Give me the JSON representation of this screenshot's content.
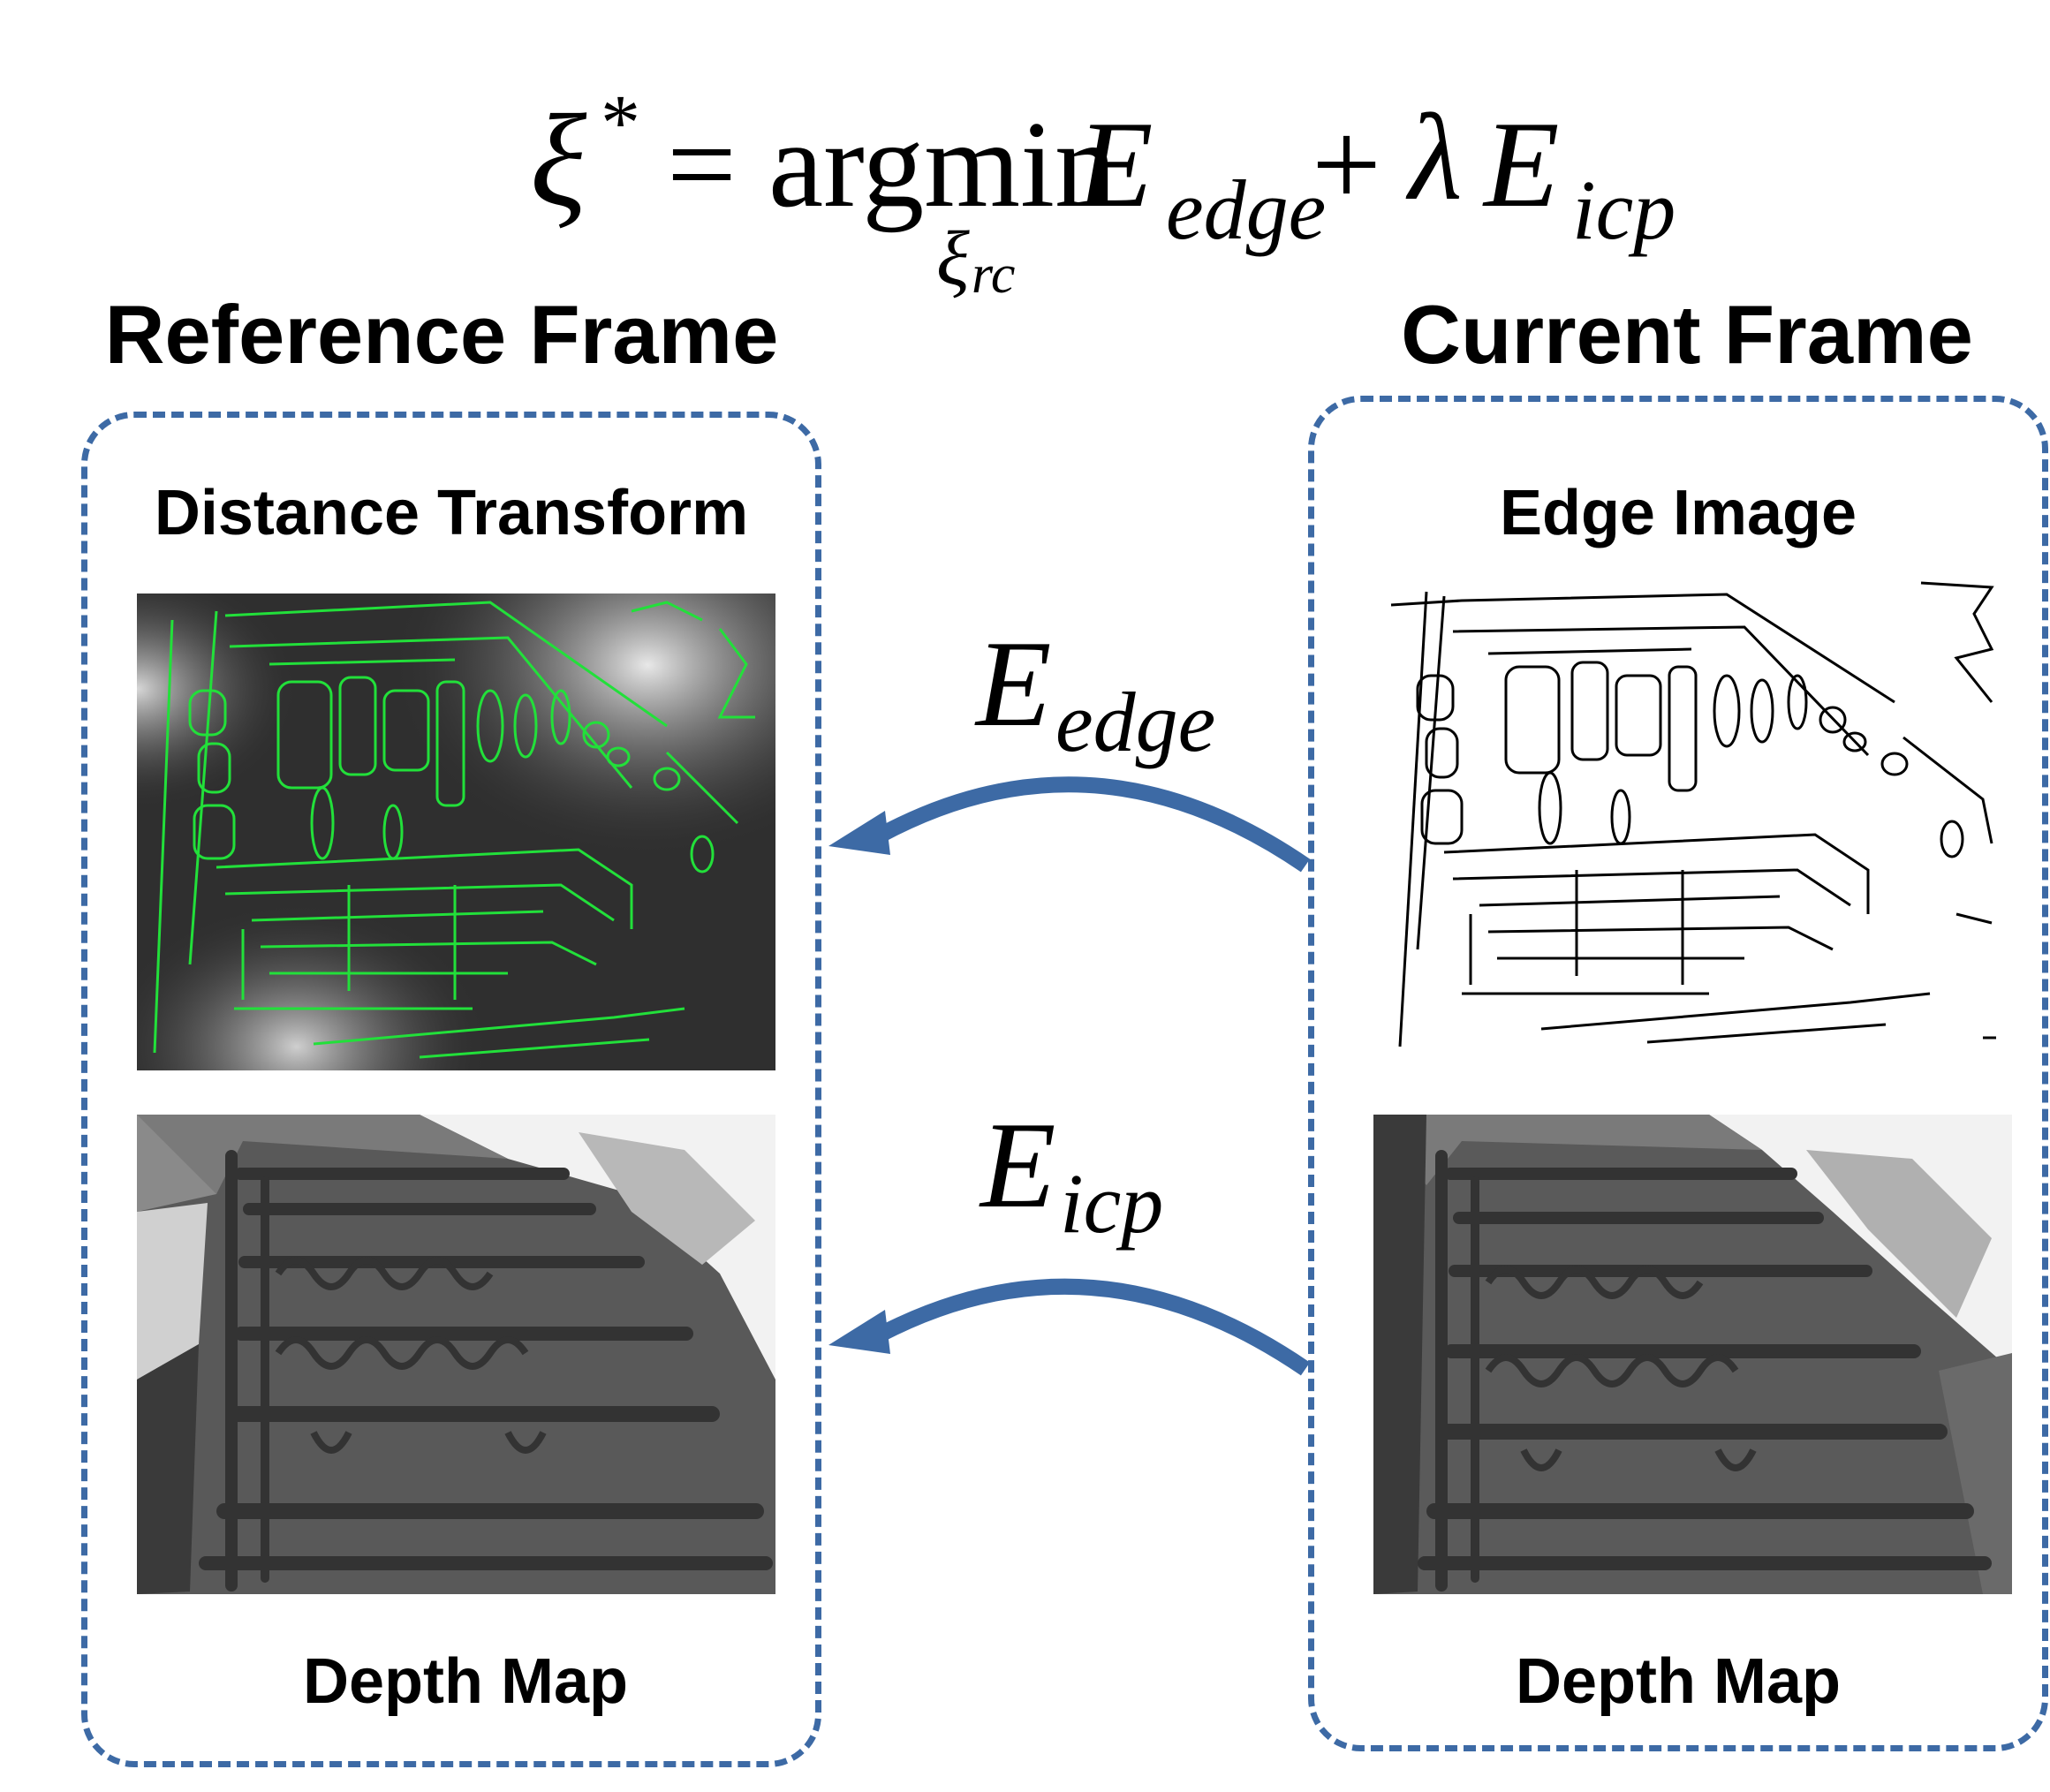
{
  "equation": {
    "lhs": "ξ",
    "lhs_sup": "*",
    "equals": "=",
    "operator": "argmin",
    "operator_sub": "ξ",
    "operator_sub_sub": "rc",
    "term1": "E",
    "term1_sub": "edge",
    "plus": "+",
    "lambda": "λ",
    "term2": "E",
    "term2_sub": "icp"
  },
  "reference_frame": {
    "title": "Reference Frame",
    "top_label": "Distance Transform",
    "bottom_label": "Depth Map"
  },
  "current_frame": {
    "title": "Current Frame",
    "top_label": "Edge Image",
    "bottom_label": "Depth Map"
  },
  "arrows": {
    "edge": {
      "symbol": "E",
      "sub": "edge"
    },
    "icp": {
      "symbol": "E",
      "sub": "icp"
    }
  },
  "colors": {
    "accent_blue": "#3d6aa5",
    "edge_green": "#22e03a",
    "depth_gray": "#555555"
  }
}
